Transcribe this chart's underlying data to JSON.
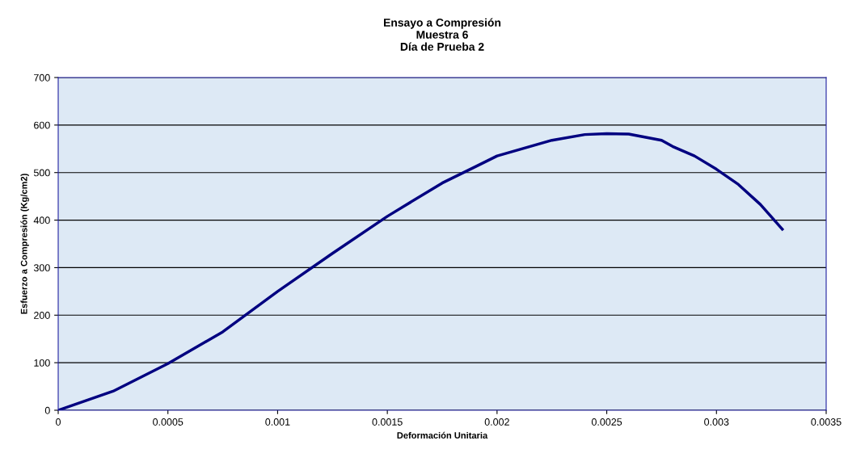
{
  "chart_data": {
    "type": "line",
    "title": "Ensayo a Compresión\nMuestra 6\nDía de Prueba 2",
    "xlabel": "Deformación Unitaria",
    "ylabel": "Esfuerzo a Compresión (Kg/cm2)",
    "xlim": [
      0,
      0.0035
    ],
    "xticks": [
      0,
      0.0005,
      0.001,
      0.0015,
      0.002,
      0.0025,
      0.003,
      0.0035
    ],
    "ylim": [
      0,
      700
    ],
    "yticks": [
      0,
      100,
      200,
      300,
      400,
      500,
      600,
      700
    ],
    "grid": "y",
    "legend": false,
    "marker": "none",
    "line_style": "solid",
    "series": [
      {
        "color": "#000080",
        "x": [
          0,
          0.00025,
          0.0005,
          0.00075,
          0.001,
          0.00125,
          0.0015,
          0.00175,
          0.0019,
          0.002,
          0.00225,
          0.0024,
          0.0025,
          0.0026,
          0.00275,
          0.0028,
          0.0029,
          0.003,
          0.0031,
          0.0032,
          0.0033
        ],
        "values": [
          0,
          40,
          98,
          165,
          250,
          330,
          408,
          478,
          512,
          535,
          568,
          580,
          582,
          581,
          568,
          555,
          535,
          507,
          475,
          433,
          381
        ]
      }
    ]
  }
}
